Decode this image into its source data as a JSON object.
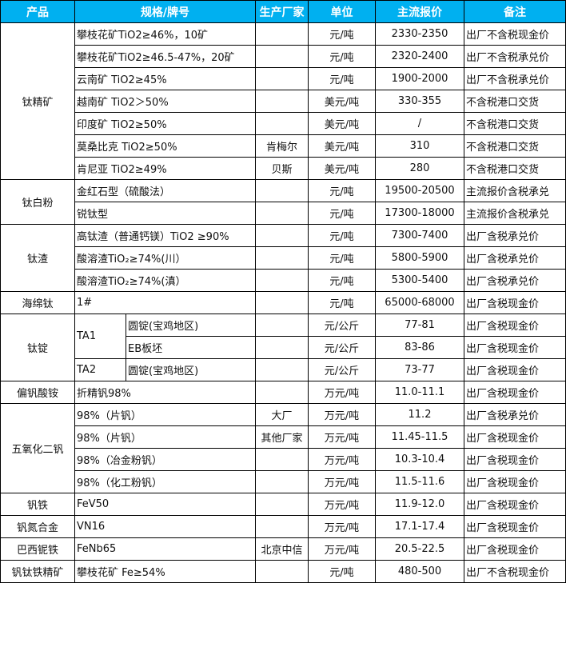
{
  "colors": {
    "header_bg": "#00B0F0",
    "header_text": "#FFFFFF"
  },
  "header": {
    "product": "产品",
    "spec": "规格/牌号",
    "maker": "生产厂家",
    "unit": "单位",
    "price": "主流报价",
    "note": "备注"
  },
  "groups": [
    {
      "product": "钛精矿",
      "items": [
        {
          "spec": "攀枝花矿TiO2≥46%，10矿",
          "maker": "",
          "unit": "元/吨",
          "price": "2330-2350",
          "note": "出厂不含税现金价"
        },
        {
          "spec": "攀枝花矿TiO2≥46.5-47%，20矿",
          "maker": "",
          "unit": "元/吨",
          "price": "2320-2400",
          "note": "出厂不含税承兑价"
        },
        {
          "spec": "云南矿 TiO2≥45%",
          "maker": "",
          "unit": "元/吨",
          "price": "1900-2000",
          "note": "出厂不含税承兑价"
        },
        {
          "spec": "越南矿 TiO2＞50%",
          "maker": "",
          "unit": "美元/吨",
          "price": "330-355",
          "note": "不含税港口交货"
        },
        {
          "spec": "印度矿 TiO2≥50%",
          "maker": "",
          "unit": "美元/吨",
          "price": "/",
          "note": "不含税港口交货"
        },
        {
          "spec": "莫桑比克 TiO2≥50%",
          "maker": "肯梅尔",
          "unit": "美元/吨",
          "price": "310",
          "note": "不含税港口交货"
        },
        {
          "spec": "肯尼亚 TiO2≥49%",
          "maker": "贝斯",
          "unit": "美元/吨",
          "price": "280",
          "note": "不含税港口交货"
        }
      ]
    },
    {
      "product": "钛白粉",
      "items": [
        {
          "spec": "金红石型（硫酸法）",
          "maker": "",
          "unit": "元/吨",
          "price": "19500-20500",
          "note": "主流报价含税承兑"
        },
        {
          "spec": "锐钛型",
          "maker": "",
          "unit": "元/吨",
          "price": "17300-18000",
          "note": "主流报价含税承兑"
        }
      ]
    },
    {
      "product": "钛渣",
      "items": [
        {
          "spec": "高钛渣（普通钙镁）TiO2 ≥90%",
          "maker": "",
          "unit": "元/吨",
          "price": "7300-7400",
          "note": "出厂含税承兑价"
        },
        {
          "spec": "酸溶渣TiO₂≥74%(川）",
          "maker": "",
          "unit": "元/吨",
          "price": "5800-5900",
          "note": "出厂含税承兑价"
        },
        {
          "spec": "酸溶渣TiO₂≥74%(滇）",
          "maker": "",
          "unit": "元/吨",
          "price": "5300-5400",
          "note": "出厂含税承兑价"
        }
      ]
    },
    {
      "product": "海绵钛",
      "items": [
        {
          "spec": "1#",
          "maker": "",
          "unit": "元/吨",
          "price": "65000-68000",
          "note": "出厂含税现金价"
        }
      ]
    },
    {
      "product": "钛锭",
      "grades": [
        {
          "grade": "TA1",
          "forms": [
            {
              "form": "圆锭(宝鸡地区)",
              "maker": "",
              "unit": "元/公斤",
              "price": "77-81",
              "note": "出厂含税现金价"
            },
            {
              "form": "EB板坯",
              "maker": "",
              "unit": "元/公斤",
              "price": "83-86",
              "note": "出厂含税现金价"
            }
          ]
        },
        {
          "grade": "TA2",
          "forms": [
            {
              "form": "圆锭(宝鸡地区)",
              "maker": "",
              "unit": "元/公斤",
              "price": "73-77",
              "note": "出厂含税现金价"
            }
          ]
        }
      ]
    },
    {
      "product": "偏钒酸铵",
      "items": [
        {
          "spec": "折精钒98%",
          "maker": "",
          "unit": "万元/吨",
          "price": "11.0-11.1",
          "note": "出厂含税现金价"
        }
      ]
    },
    {
      "product": "五氧化二钒",
      "items": [
        {
          "spec": "98%（片钒）",
          "maker": "大厂",
          "unit": "万元/吨",
          "price": "11.2",
          "note": "出厂含税承兑价"
        },
        {
          "spec": "98%（片钒）",
          "maker": "其他厂家",
          "unit": "万元/吨",
          "price": "11.45-11.5",
          "note": "出厂含税现金价"
        },
        {
          "spec": "98%（冶金粉钒）",
          "maker": "",
          "unit": "万元/吨",
          "price": "10.3-10.4",
          "note": "出厂含税现金价"
        },
        {
          "spec": "98%（化工粉钒）",
          "maker": "",
          "unit": "万元/吨",
          "price": "11.5-11.6",
          "note": "出厂含税现金价"
        }
      ]
    },
    {
      "product": "钒铁",
      "items": [
        {
          "spec": "FeV50",
          "maker": "",
          "unit": "万元/吨",
          "price": "11.9-12.0",
          "note": "出厂含税现金价"
        }
      ]
    },
    {
      "product": "钒氮合金",
      "items": [
        {
          "spec": "VN16",
          "maker": "",
          "unit": "万元/吨",
          "price": "17.1-17.4",
          "note": "出厂含税现金价"
        }
      ]
    },
    {
      "product": "巴西铌铁",
      "items": [
        {
          "spec": "FeNb65",
          "maker": "北京中信",
          "unit": "万元/吨",
          "price": "20.5-22.5",
          "note": "出厂含税现金价"
        }
      ]
    },
    {
      "product": "钒钛铁精矿",
      "items": [
        {
          "spec": "攀枝花矿 Fe≥54%",
          "maker": "",
          "unit": "元/吨",
          "price": "480-500",
          "note": "出厂不含税现金价"
        }
      ]
    }
  ]
}
